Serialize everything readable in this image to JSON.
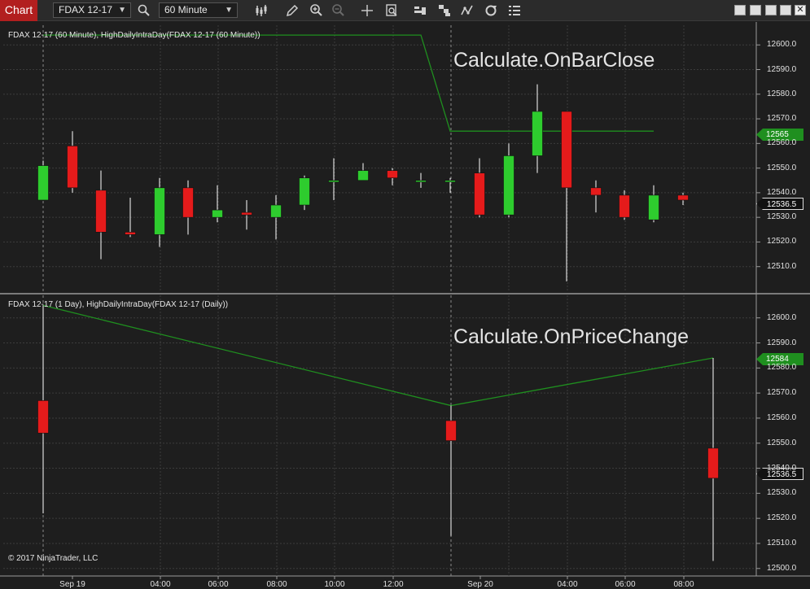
{
  "toolbar": {
    "tab_label": "Chart",
    "instrument": "FDAX 12-17",
    "interval": "60 Minute",
    "icons": [
      "search-icon",
      "bar-style-icon",
      "draw-pencil-icon",
      "zoom-in-icon",
      "zoom-out-icon",
      "crosshair-icon",
      "data-box-icon",
      "order-icon",
      "strategies-icon",
      "indicators-icon",
      "refresh-icon",
      "properties-icon"
    ]
  },
  "top_panel": {
    "legend": "FDAX 12-17 (60 Minute), HighDailyIntraDay(FDAX 12-17 (60 Minute))",
    "overlay": "Calculate.OnBarClose",
    "y_ticks": [
      "12600.0",
      "12590.0",
      "12580.0",
      "12570.0",
      "12560.0",
      "12550.0",
      "12540.0",
      "12530.0",
      "12520.0",
      "12510.0"
    ],
    "badge_indicator": "12565",
    "badge_price": "12536.5"
  },
  "bottom_panel": {
    "legend": "FDAX 12-17 (1 Day), HighDailyIntraDay(FDAX 12-17 (Daily))",
    "overlay": "Calculate.OnPriceChange",
    "y_ticks": [
      "12600.0",
      "12590.0",
      "12580.0",
      "12570.0",
      "12560.0",
      "12550.0",
      "12540.0",
      "12530.0",
      "12520.0",
      "12510.0",
      "12500.0"
    ],
    "badge_indicator": "12584",
    "badge_price": "12536.5"
  },
  "x_ticks": [
    "Sep 19",
    "04:00",
    "06:00",
    "08:00",
    "10:00",
    "12:00",
    "Sep 20",
    "04:00",
    "06:00",
    "08:00"
  ],
  "copyright": "© 2017 NinjaTrader, LLC",
  "colors": {
    "up": "#2ecc2e",
    "down": "#e51b1b",
    "indicator": "#1f8f1f",
    "background": "#1e1e1e"
  },
  "chart_data": [
    {
      "type": "candlestick",
      "panel": "top",
      "ylim": [
        12500,
        12608
      ],
      "series": [
        {
          "name": "FDAX 12-17 (60 Minute)",
          "candles": [
            {
              "o": 12537,
              "h": 12553,
              "l": 12537,
              "c": 12551
            },
            {
              "o": 12559,
              "h": 12565,
              "l": 12540,
              "c": 12542
            },
            {
              "o": 12541,
              "h": 12549,
              "l": 12513,
              "c": 12524
            },
            {
              "o": 12524,
              "h": 12538,
              "l": 12522,
              "c": 12523
            },
            {
              "o": 12523,
              "h": 12546,
              "l": 12518,
              "c": 12542
            },
            {
              "o": 12542,
              "h": 12545,
              "l": 12523,
              "c": 12530
            },
            {
              "o": 12530,
              "h": 12543,
              "l": 12528,
              "c": 12533
            },
            {
              "o": 12532,
              "h": 12537,
              "l": 12525,
              "c": 12531
            },
            {
              "o": 12530,
              "h": 12539,
              "l": 12521,
              "c": 12535
            },
            {
              "o": 12535,
              "h": 12547,
              "l": 12533,
              "c": 12546
            },
            {
              "o": 12545,
              "h": 12554,
              "l": 12537,
              "c": 12545
            },
            {
              "o": 12545,
              "h": 12552,
              "l": 12545,
              "c": 12549
            },
            {
              "o": 12549,
              "h": 12550,
              "l": 12543,
              "c": 12546
            },
            {
              "o": 12545,
              "h": 12548,
              "l": 12542,
              "c": 12545
            },
            {
              "o": 12545,
              "h": 12546,
              "l": 12540,
              "c": 12545
            },
            {
              "o": 12548,
              "h": 12554,
              "l": 12530,
              "c": 12531
            },
            {
              "o": 12531,
              "h": 12560,
              "l": 12530,
              "c": 12555
            },
            {
              "o": 12555,
              "h": 12584,
              "l": 12548,
              "c": 12573
            },
            {
              "o": 12573,
              "h": 12573,
              "l": 12504,
              "c": 12542
            },
            {
              "o": 12542,
              "h": 12545,
              "l": 12532,
              "c": 12539
            },
            {
              "o": 12539,
              "h": 12541,
              "l": 12529,
              "c": 12530
            },
            {
              "o": 12529,
              "h": 12543,
              "l": 12528,
              "c": 12539
            },
            {
              "o": 12539,
              "h": 12540,
              "l": 12535,
              "c": 12537
            }
          ]
        }
      ],
      "indicator": {
        "name": "HighDailyIntraDay",
        "x": [
          0,
          13.5,
          14.5,
          21.5
        ],
        "y": [
          12604,
          12604,
          12565,
          12565
        ]
      }
    },
    {
      "type": "candlestick",
      "panel": "bottom",
      "ylim": [
        12497,
        12609
      ],
      "series": [
        {
          "name": "FDAX 12-17 (1 Day)",
          "candles": [
            {
              "o": 12567,
              "h": 12605,
              "l": 12522,
              "c": 12554
            },
            {
              "o": 12559,
              "h": 12565,
              "l": 12513,
              "c": 12551
            },
            {
              "o": 12548,
              "h": 12584,
              "l": 12503,
              "c": 12536
            }
          ]
        }
      ],
      "indicator": {
        "name": "HighDailyIntraDay",
        "x": [
          0,
          1,
          2
        ],
        "y": [
          12605,
          12565,
          12584
        ]
      }
    }
  ]
}
